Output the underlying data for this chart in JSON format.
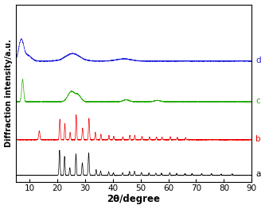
{
  "title": "",
  "xlabel": "2θ/degree",
  "ylabel": "Diffraction intensity/a.u.",
  "xlim": [
    5,
    90
  ],
  "ylim": [
    -0.05,
    1.35
  ],
  "xticks": [
    10,
    20,
    30,
    40,
    50,
    60,
    70,
    80,
    90
  ],
  "colors": {
    "a": "#000000",
    "b": "#ee0000",
    "c": "#22aa00",
    "d": "#2222dd"
  },
  "offsets": {
    "a": 0.0,
    "b": 0.28,
    "c": 0.58,
    "d": 0.9
  },
  "scales": {
    "a": 0.2,
    "b": 0.2,
    "c": 0.18,
    "d": 0.18
  },
  "labels": {
    "a": "a",
    "b": "b",
    "c": "c",
    "d": "d"
  },
  "figsize": [
    3.33,
    2.63
  ],
  "dpi": 100
}
